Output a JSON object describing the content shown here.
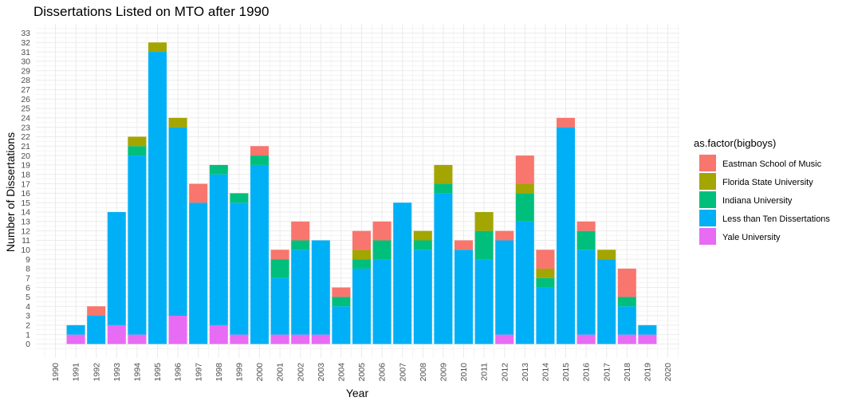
{
  "chart_data": {
    "type": "bar",
    "stacked": true,
    "title": "Dissertations Listed on MTO after 1990",
    "xlabel": "Year",
    "ylabel": "Number of Dissertations",
    "xlim": [
      1990,
      2020
    ],
    "ylim": [
      0,
      33
    ],
    "grid": true,
    "legend_position": "right",
    "legend_title": "as.factor(bigboys)",
    "categories": [
      1991,
      1992,
      1993,
      1994,
      1995,
      1996,
      1997,
      1998,
      1999,
      2000,
      2001,
      2002,
      2003,
      2004,
      2005,
      2006,
      2007,
      2008,
      2009,
      2010,
      2011,
      2012,
      2013,
      2014,
      2015,
      2016,
      2017,
      2018,
      2019
    ],
    "series": [
      {
        "name": "Yale University",
        "color": "#E76BF3",
        "values": [
          1,
          0,
          2,
          1,
          0,
          3,
          0,
          2,
          1,
          0,
          1,
          1,
          1,
          0,
          0,
          0,
          0,
          0,
          0,
          0,
          0,
          1,
          0,
          0,
          0,
          1,
          0,
          1,
          1
        ]
      },
      {
        "name": "Less than Ten Dissertations",
        "color": "#00B0F6",
        "values": [
          1,
          3,
          12,
          19,
          31,
          20,
          15,
          16,
          14,
          19,
          6,
          9,
          10,
          4,
          8,
          9,
          15,
          10,
          16,
          10,
          9,
          10,
          13,
          6,
          23,
          9,
          9,
          3,
          1
        ]
      },
      {
        "name": "Indiana University",
        "color": "#00BF7D",
        "values": [
          0,
          0,
          0,
          1,
          0,
          0,
          0,
          1,
          1,
          1,
          2,
          1,
          0,
          1,
          1,
          2,
          0,
          1,
          1,
          0,
          3,
          0,
          3,
          1,
          0,
          2,
          0,
          1,
          0
        ]
      },
      {
        "name": "Florida State University",
        "color": "#A3A500",
        "values": [
          0,
          0,
          0,
          1,
          1,
          1,
          0,
          0,
          0,
          0,
          0,
          0,
          0,
          0,
          1,
          0,
          0,
          1,
          2,
          0,
          2,
          0,
          1,
          1,
          0,
          0,
          1,
          0,
          0
        ]
      },
      {
        "name": "Eastman School of Music",
        "color": "#F8766D",
        "values": [
          0,
          1,
          0,
          0,
          0,
          0,
          2,
          0,
          0,
          1,
          1,
          2,
          0,
          1,
          2,
          2,
          0,
          0,
          0,
          1,
          0,
          1,
          3,
          2,
          1,
          1,
          0,
          3,
          0
        ]
      }
    ],
    "legend_order": [
      "Eastman School of Music",
      "Florida State University",
      "Indiana University",
      "Less than Ten Dissertations",
      "Yale University"
    ]
  }
}
